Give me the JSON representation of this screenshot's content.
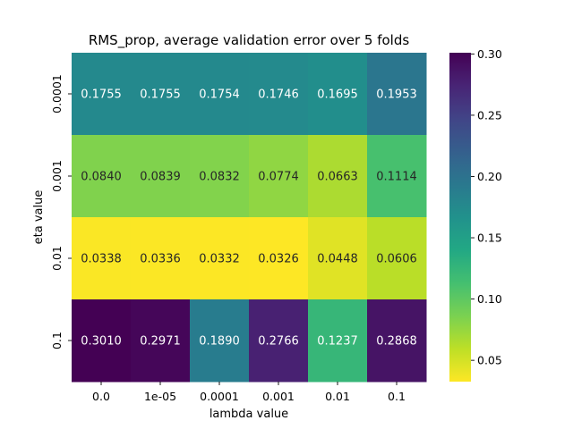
{
  "chart_data": {
    "type": "heatmap",
    "title": "RMS_prop, average validation error over 5 folds",
    "xlabel": "lambda value",
    "ylabel": "eta value",
    "x_categories": [
      "0.0",
      "1e-05",
      "0.0001",
      "0.001",
      "0.01",
      "0.1"
    ],
    "y_categories": [
      "0.0001",
      "0.001",
      "0.01",
      "0.1"
    ],
    "values": [
      [
        0.1755,
        0.1755,
        0.1754,
        0.1746,
        0.1695,
        0.1953
      ],
      [
        0.084,
        0.0839,
        0.0832,
        0.0774,
        0.0663,
        0.1114
      ],
      [
        0.0338,
        0.0336,
        0.0332,
        0.0326,
        0.0448,
        0.0606
      ],
      [
        0.301,
        0.2971,
        0.189,
        0.2766,
        0.1237,
        0.2868
      ]
    ],
    "cell_labels": [
      [
        "0.1755",
        "0.1755",
        "0.1754",
        "0.1746",
        "0.1695",
        "0.1953"
      ],
      [
        "0.0840",
        "0.0839",
        "0.0832",
        "0.0774",
        "0.0663",
        "0.1114"
      ],
      [
        "0.0338",
        "0.0336",
        "0.0332",
        "0.0326",
        "0.0448",
        "0.0606"
      ],
      [
        "0.3010",
        "0.2971",
        "0.1890",
        "0.2766",
        "0.1237",
        "0.2868"
      ]
    ],
    "colormap": "viridis_r",
    "vmin": 0.0326,
    "vmax": 0.301,
    "colorbar_ticks": [
      0.05,
      0.1,
      0.15,
      0.2,
      0.25,
      0.3
    ],
    "colorbar_tick_labels": [
      "0.05",
      "0.10",
      "0.15",
      "0.20",
      "0.25",
      "0.30"
    ]
  }
}
